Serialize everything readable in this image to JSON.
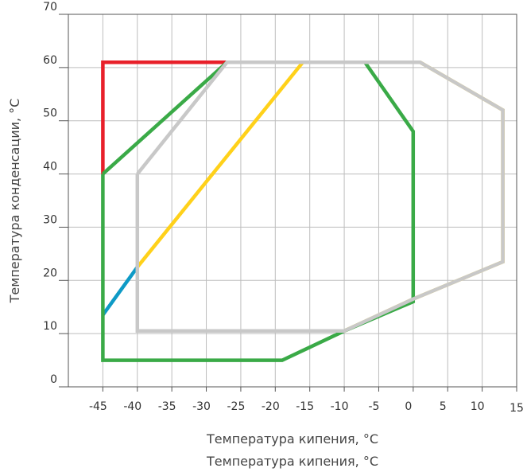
{
  "chart_data": {
    "type": "line",
    "title": "",
    "xlabel": "Температура кипения, °С",
    "xlabel_repeat": "Температура кипения, °С",
    "ylabel": "Температура конденсации, °С",
    "xlim": [
      -50,
      15
    ],
    "ylim": [
      0,
      70
    ],
    "x_ticks": [
      -45,
      -40,
      -35,
      -30,
      -25,
      -20,
      -15,
      -10,
      -5,
      0,
      5,
      10,
      15
    ],
    "y_ticks": [
      0,
      10,
      20,
      30,
      40,
      50,
      60,
      70
    ],
    "grid": true,
    "legend": "none",
    "series": [
      {
        "color": "#e8202a",
        "points": [
          [
            -45,
            40
          ],
          [
            -45,
            61
          ],
          [
            -27,
            61
          ]
        ]
      },
      {
        "color": "#0e9ac6",
        "points": [
          [
            -45,
            13.5
          ],
          [
            -40,
            22.5
          ]
        ]
      },
      {
        "color": "#ffd11a",
        "points": [
          [
            -40,
            22.5
          ],
          [
            -16,
            61
          ],
          [
            1,
            61
          ],
          [
            13,
            52
          ],
          [
            13,
            23.5
          ],
          [
            0,
            16.5
          ],
          [
            -10,
            10.5
          ]
        ]
      },
      {
        "color": "#3aaa47",
        "points": [
          [
            -45,
            40
          ],
          [
            -27,
            61
          ],
          [
            -7,
            61
          ],
          [
            0,
            48
          ],
          [
            0,
            16
          ],
          [
            -10,
            10.5
          ],
          [
            -19,
            5
          ],
          [
            -45,
            5
          ],
          [
            -45,
            40
          ]
        ]
      },
      {
        "color": "#c8c8c8",
        "points": [
          [
            -40,
            40
          ],
          [
            -27,
            61
          ],
          [
            1,
            61
          ],
          [
            13,
            52
          ],
          [
            13,
            23.5
          ],
          [
            0,
            16.5
          ],
          [
            -10,
            10.5
          ],
          [
            -40,
            10.5
          ],
          [
            -40,
            40
          ]
        ]
      }
    ]
  }
}
